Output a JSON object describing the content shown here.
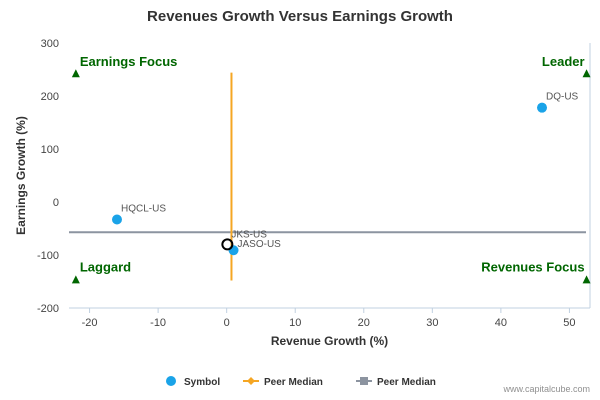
{
  "chart_data": {
    "type": "scatter",
    "title": "Revenues Growth Versus Earnings Growth",
    "xlabel": "Revenue Growth (%)",
    "ylabel": "Earnings Growth (%)",
    "xlim": [
      -23,
      53
    ],
    "ylim": [
      -200,
      300
    ],
    "x_ticks": [
      -20,
      -10,
      0,
      10,
      20,
      30,
      40,
      50
    ],
    "y_ticks": [
      -200,
      -100,
      0,
      100,
      200,
      300
    ],
    "grid": false,
    "series": [
      {
        "name": "Symbol",
        "color": "#1aa3e8",
        "points": [
          {
            "label": "DQ-US",
            "x": 46,
            "y": 178
          },
          {
            "label": "HQCL-US",
            "x": -16,
            "y": -33
          },
          {
            "label": "JASO-US",
            "x": 1,
            "y": -91
          }
        ]
      },
      {
        "name": "Peer Median",
        "color": "#f5a623",
        "kind": "vertical",
        "x": 0.7
      },
      {
        "name": "Peer Median",
        "color": "#8c94a0",
        "kind": "horizontal",
        "y": -57
      }
    ],
    "highlight": {
      "label": "JKS-US",
      "x": 0.1,
      "y": -80
    },
    "quadrants": {
      "top_left": "Earnings Focus",
      "top_right": "Leader",
      "bottom_left": "Laggard",
      "bottom_right": "Revenues Focus"
    },
    "quadrant_color": "#006600",
    "legend_position": "bottom-center"
  },
  "footer": "www.capitalcube.com"
}
